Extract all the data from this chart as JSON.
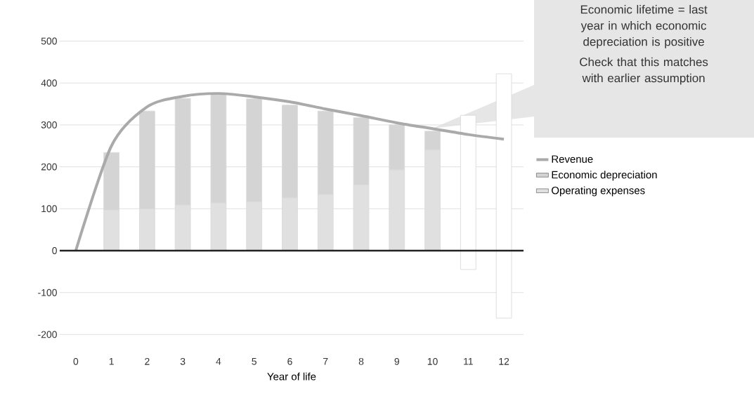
{
  "chart_data": {
    "type": "bar",
    "stacked": true,
    "xlabel": "Year of life",
    "categories": [
      "0",
      "1",
      "2",
      "3",
      "4",
      "5",
      "6",
      "7",
      "8",
      "9",
      "10",
      "11",
      "12"
    ],
    "series": [
      {
        "name": "Revenue",
        "type": "line",
        "color": "#aaaaaa",
        "values": [
          0,
          250,
          343,
          368,
          375,
          367,
          355,
          338,
          322,
          305,
          291,
          277,
          266
        ]
      },
      {
        "name": "Operating expenses",
        "color": "#e0e0e0",
        "colors": [
          "#e0e0e0",
          "#e0e0e0",
          "#e0e0e0",
          "#e0e0e0",
          "#e0e0e0",
          "#e0e0e0",
          "#e0e0e0",
          "#e0e0e0",
          "#e0e0e0",
          "#e0e0e0",
          "#e0e0e0",
          "#ffffff",
          "#ffffff"
        ],
        "values": [
          null,
          97,
          100,
          109,
          114,
          117,
          126,
          134,
          157,
          193,
          241,
          323,
          422
        ]
      },
      {
        "name": "Economic depreciation",
        "color": "#d4d4d4",
        "colors": [
          "#d4d4d4",
          "#d4d4d4",
          "#d4d4d4",
          "#d4d4d4",
          "#d4d4d4",
          "#d4d4d4",
          "#d4d4d4",
          "#d4d4d4",
          "#d4d4d4",
          "#d4d4d4",
          "#d4d4d4",
          "#ffffff",
          "#ffffff"
        ],
        "values": [
          null,
          137,
          233,
          254,
          258,
          245,
          221,
          199,
          160,
          107,
          44,
          -45,
          -161
        ]
      }
    ],
    "ylim": [
      -200,
      500
    ],
    "yticks": [
      -200,
      -100,
      0,
      100,
      200,
      300,
      400,
      500
    ],
    "grid": "y",
    "legend": "right",
    "ref_lines": [
      {
        "axis": "y",
        "value": 0,
        "color": "#222222"
      }
    ],
    "annotations": [
      "Economic lifetime = last year in which economic depreciation is positive",
      "Check that this matches with earlier assumption"
    ]
  }
}
